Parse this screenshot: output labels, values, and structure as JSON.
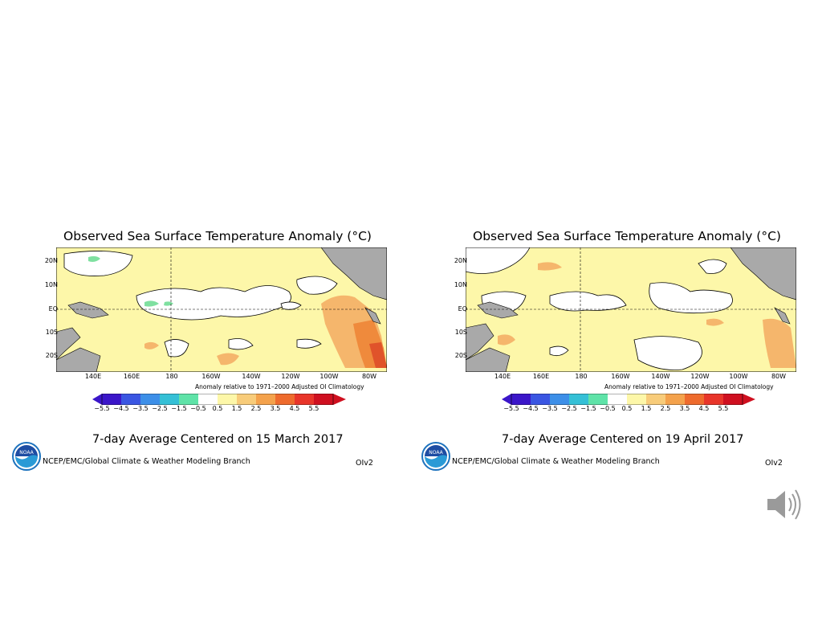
{
  "panels": [
    {
      "title": "Observed Sea Surface Temperature Anomaly (°C)",
      "lat_labels": [
        "20N",
        "10N",
        "EQ",
        "10S",
        "20S"
      ],
      "lon_labels": [
        "140E",
        "160E",
        "180",
        "160W",
        "140W",
        "120W",
        "100W",
        "80W"
      ],
      "anomaly_note": "Anomaly relative to 1971–2000 Adjusted OI Climatology",
      "scale_labels": [
        "−5.5",
        "−4.5",
        "−3.5",
        "−2.5",
        "−1.5",
        "−0.5",
        "0.5",
        "1.5",
        "2.5",
        "3.5",
        "4.5",
        "5.5"
      ],
      "subtitle": "7-day Average Centered on 15 March 2017",
      "credit": "NCEP/EMC/Global Climate & Weather Modeling Branch",
      "version": "OIv2",
      "logo_text": "NOAA"
    },
    {
      "title": "Observed Sea Surface Temperature Anomaly (°C)",
      "lat_labels": [
        "20N",
        "10N",
        "EQ",
        "10S",
        "20S"
      ],
      "lon_labels": [
        "140E",
        "160E",
        "180",
        "160W",
        "140W",
        "120W",
        "100W",
        "80W"
      ],
      "anomaly_note": "Anomaly relative to 1971–2000 Adjusted OI Climatology",
      "scale_labels": [
        "−5.5",
        "−4.5",
        "−3.5",
        "−2.5",
        "−1.5",
        "−0.5",
        "0.5",
        "1.5",
        "2.5",
        "3.5",
        "4.5",
        "5.5"
      ],
      "subtitle": "7-day Average Centered on 19 April 2017",
      "credit": "NCEP/EMC/Global Climate & Weather Modeling Branch",
      "version": "OIv2",
      "logo_text": "NOAA"
    }
  ],
  "colors": {
    "land": "#a9a9a9",
    "ocean_base": "#fdf7a9",
    "warm_1": "#f5b66c",
    "warm_2": "#ef8a3c",
    "warm_3": "#e0532a",
    "neutral": "#ffffff",
    "cool_1": "#7fe0a0",
    "scale": [
      "#3b16c9",
      "#3a56e2",
      "#3d8fe8",
      "#35c0d6",
      "#5fe3a8",
      "#ffffff",
      "#fdf7a9",
      "#f8cc7a",
      "#f4a24c",
      "#ee6b2d",
      "#e8352a",
      "#cf1020"
    ]
  },
  "speaker_icon": "speaker-icon"
}
